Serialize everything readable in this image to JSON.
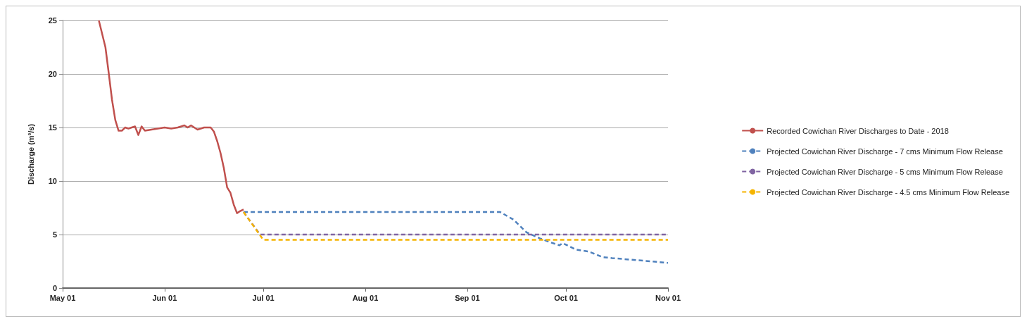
{
  "chart_data": {
    "type": "line",
    "ylabel": "Discharge (m³/s)",
    "xlim": [
      "2018-05-01",
      "2018-11-01"
    ],
    "xticks": [
      {
        "value": "2018-05-01",
        "label": "May 01"
      },
      {
        "value": "2018-06-01",
        "label": "Jun 01"
      },
      {
        "value": "2018-07-01",
        "label": "Jul 01"
      },
      {
        "value": "2018-08-01",
        "label": "Aug 01"
      },
      {
        "value": "2018-09-01",
        "label": "Sep 01"
      },
      {
        "value": "2018-10-01",
        "label": "Oct 01"
      },
      {
        "value": "2018-11-01",
        "label": "Nov 01"
      }
    ],
    "ylim": [
      0,
      25
    ],
    "yticks": [
      0,
      5,
      10,
      15,
      20,
      25
    ],
    "grid": "y",
    "legend": "right",
    "marker": "none",
    "series": [
      {
        "name": "Recorded Cowichan River Discharges to Date - 2018",
        "color": "#c0504d",
        "line_style": "solid",
        "x": [
          "2018-05-12",
          "2018-05-14",
          "2018-05-15",
          "2018-05-16",
          "2018-05-17",
          "2018-05-18",
          "2018-05-19",
          "2018-05-20",
          "2018-05-21",
          "2018-05-22",
          "2018-05-23",
          "2018-05-24",
          "2018-05-25",
          "2018-05-26",
          "2018-05-28",
          "2018-06-01",
          "2018-06-03",
          "2018-06-05",
          "2018-06-07",
          "2018-06-08",
          "2018-06-09",
          "2018-06-11",
          "2018-06-13",
          "2018-06-15",
          "2018-06-16",
          "2018-06-17",
          "2018-06-18",
          "2018-06-19",
          "2018-06-20",
          "2018-06-21",
          "2018-06-22",
          "2018-06-23",
          "2018-06-24",
          "2018-06-25"
        ],
        "values": [
          25,
          22.5,
          20.1,
          17.6,
          15.7,
          14.7,
          14.7,
          15,
          14.9,
          15,
          15.1,
          14.3,
          15.1,
          14.7,
          14.8,
          15,
          14.9,
          15,
          15.2,
          15,
          15.2,
          14.8,
          15,
          15,
          14.6,
          13.7,
          12.6,
          11.2,
          9.4,
          8.9,
          7.8,
          7,
          7.2,
          7.35
        ]
      },
      {
        "name": "Projected Cowichan River Discharge - 7 cms Minimum Flow Release",
        "color": "#4f81bd",
        "line_style": "dashed",
        "x": [
          "2018-06-25",
          "2018-09-11",
          "2018-09-15",
          "2018-09-19",
          "2018-09-23",
          "2018-09-26",
          "2018-09-29",
          "2018-09-30",
          "2018-10-04",
          "2018-10-08",
          "2018-10-12",
          "2018-10-15",
          "2018-10-23",
          "2018-11-01"
        ],
        "values": [
          7.1,
          7.1,
          6.4,
          5.2,
          4.65,
          4.3,
          4,
          4.2,
          3.6,
          3.4,
          2.9,
          2.8,
          2.6,
          2.35
        ]
      },
      {
        "name": "Projected Cowichan River Discharge - 5 cms Minimum Flow Release",
        "color": "#8064a2",
        "line_style": "dashed",
        "x": [
          "2018-06-25",
          "2018-06-30",
          "2018-11-01"
        ],
        "values": [
          7.1,
          5,
          5
        ]
      },
      {
        "name": "Projected Cowichan River Discharge - 4.5 cms Minimum Flow Release",
        "color": "#f5b400",
        "line_style": "dashed",
        "x": [
          "2018-06-25",
          "2018-07-01",
          "2018-11-01"
        ],
        "values": [
          7.1,
          4.5,
          4.5
        ]
      }
    ]
  }
}
